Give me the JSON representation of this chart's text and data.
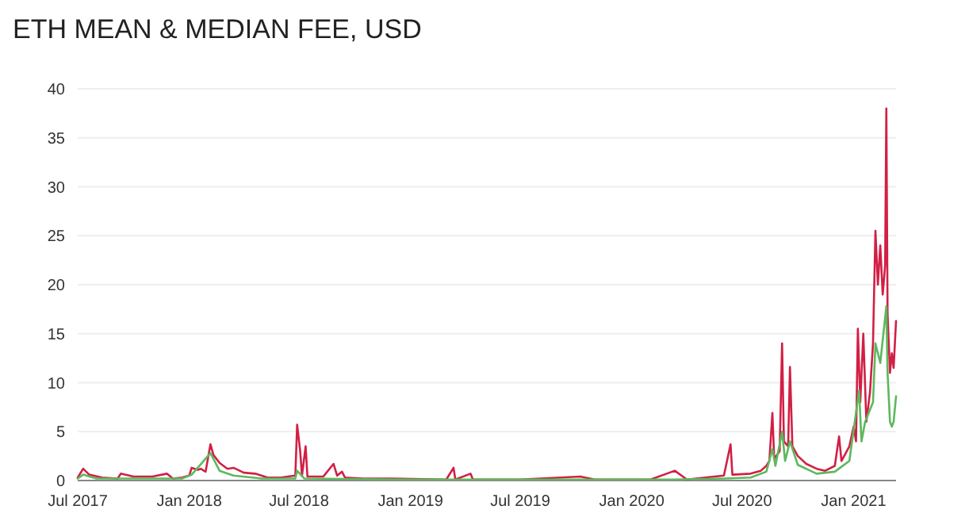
{
  "chart_data": {
    "type": "line",
    "title": "ETH MEAN & MEDIAN FEE, USD",
    "xlim": [
      "2017-07-01",
      "2021-03-12"
    ],
    "xticks": [
      {
        "value": "2017-07-01",
        "label": "Jul 2017"
      },
      {
        "value": "2018-01-01",
        "label": "Jan 2018"
      },
      {
        "value": "2018-07-01",
        "label": "Jul 2018"
      },
      {
        "value": "2019-01-01",
        "label": "Jan 2019"
      },
      {
        "value": "2019-07-01",
        "label": "Jul 2019"
      },
      {
        "value": "2020-01-01",
        "label": "Jan 2020"
      },
      {
        "value": "2020-07-01",
        "label": "Jul 2020"
      },
      {
        "value": "2021-01-01",
        "label": "Jan 2021"
      }
    ],
    "ylim": [
      0,
      40
    ],
    "yticks": [
      0,
      5,
      10,
      15,
      20,
      25,
      30,
      35,
      40
    ],
    "grid": "y",
    "series": [
      {
        "color": "#d21f45",
        "x": [
          "2017-07-01",
          "2017-07-10",
          "2017-07-20",
          "2017-08-10",
          "2017-09-05",
          "2017-09-10",
          "2017-10-01",
          "2017-11-01",
          "2017-11-25",
          "2017-12-05",
          "2017-12-20",
          "2018-01-01",
          "2018-01-05",
          "2018-01-15",
          "2018-01-20",
          "2018-01-28",
          "2018-02-05",
          "2018-02-10",
          "2018-02-20",
          "2018-03-05",
          "2018-03-15",
          "2018-04-01",
          "2018-04-20",
          "2018-05-10",
          "2018-06-01",
          "2018-06-25",
          "2018-06-28",
          "2018-07-03",
          "2018-07-06",
          "2018-07-12",
          "2018-07-15",
          "2018-08-10",
          "2018-08-27",
          "2018-09-02",
          "2018-09-10",
          "2018-09-15",
          "2018-10-15",
          "2018-12-01",
          "2019-03-01",
          "2019-03-13",
          "2019-03-16",
          "2019-04-10",
          "2019-04-14",
          "2019-07-01",
          "2019-10-08",
          "2019-11-01",
          "2020-02-01",
          "2020-03-12",
          "2020-04-01",
          "2020-05-01",
          "2020-06-01",
          "2020-06-12",
          "2020-06-15",
          "2020-07-15",
          "2020-08-01",
          "2020-08-10",
          "2020-08-15",
          "2020-08-20",
          "2020-08-23",
          "2020-09-01",
          "2020-09-05",
          "2020-09-08",
          "2020-09-15",
          "2020-09-18",
          "2020-09-22",
          "2020-10-01",
          "2020-10-15",
          "2020-11-01",
          "2020-11-15",
          "2020-12-01",
          "2020-12-08",
          "2020-12-12",
          "2020-12-25",
          "2021-01-01",
          "2021-01-05",
          "2021-01-08",
          "2021-01-12",
          "2021-01-17",
          "2021-01-22",
          "2021-01-28",
          "2021-02-02",
          "2021-02-06",
          "2021-02-10",
          "2021-02-14",
          "2021-02-18",
          "2021-02-22",
          "2021-02-24",
          "2021-02-26",
          "2021-03-02",
          "2021-03-05",
          "2021-03-08",
          "2021-03-12"
        ],
        "values": [
          0.3,
          1.2,
          0.6,
          0.3,
          0.2,
          0.7,
          0.4,
          0.4,
          0.7,
          0.2,
          0.3,
          0.5,
          1.3,
          1.1,
          1.2,
          0.9,
          3.7,
          2.6,
          1.8,
          1.2,
          1.3,
          0.8,
          0.7,
          0.3,
          0.3,
          0.5,
          5.7,
          3,
          0.5,
          3.5,
          0.4,
          0.4,
          1.7,
          0.5,
          0.9,
          0.3,
          0.2,
          0.2,
          0.1,
          1.3,
          0.1,
          0.7,
          0.1,
          0.1,
          0.4,
          0.1,
          0.1,
          1,
          0.1,
          0.3,
          0.5,
          3.7,
          0.6,
          0.7,
          1,
          1.5,
          2,
          6.9,
          2.2,
          3,
          14,
          4,
          3.5,
          11.6,
          3.5,
          2.5,
          1.7,
          1.2,
          1,
          1.5,
          4.5,
          2,
          3.5,
          5.5,
          4,
          15.5,
          8,
          15,
          6,
          9,
          14,
          25.5,
          20,
          24,
          19,
          22,
          38,
          17,
          11,
          13,
          11.5,
          16.3
        ]
      },
      {
        "color": "#5cb85c",
        "x": [
          "2017-07-01",
          "2017-07-10",
          "2017-08-01",
          "2017-12-20",
          "2018-01-05",
          "2018-02-05",
          "2018-02-20",
          "2018-03-15",
          "2018-05-01",
          "2018-06-25",
          "2018-06-28",
          "2018-07-10",
          "2019-01-01",
          "2020-03-12",
          "2020-06-01",
          "2020-07-15",
          "2020-08-10",
          "2020-08-20",
          "2020-08-25",
          "2020-09-05",
          "2020-09-10",
          "2020-09-18",
          "2020-10-01",
          "2020-11-01",
          "2020-12-01",
          "2020-12-25",
          "2021-01-10",
          "2021-01-14",
          "2021-01-20",
          "2021-02-02",
          "2021-02-06",
          "2021-02-14",
          "2021-02-24",
          "2021-02-26",
          "2021-03-02",
          "2021-03-05",
          "2021-03-08",
          "2021-03-12"
        ],
        "values": [
          0.2,
          0.6,
          0.2,
          0.2,
          0.6,
          2.8,
          1,
          0.5,
          0.2,
          0.2,
          1,
          0.2,
          0.1,
          0.1,
          0.2,
          0.3,
          0.9,
          3.2,
          1.5,
          5,
          2,
          4,
          1.6,
          0.7,
          0.9,
          2,
          9.2,
          4,
          6,
          8,
          14,
          12,
          17.8,
          11,
          6,
          5.5,
          6,
          8.6
        ]
      }
    ]
  }
}
